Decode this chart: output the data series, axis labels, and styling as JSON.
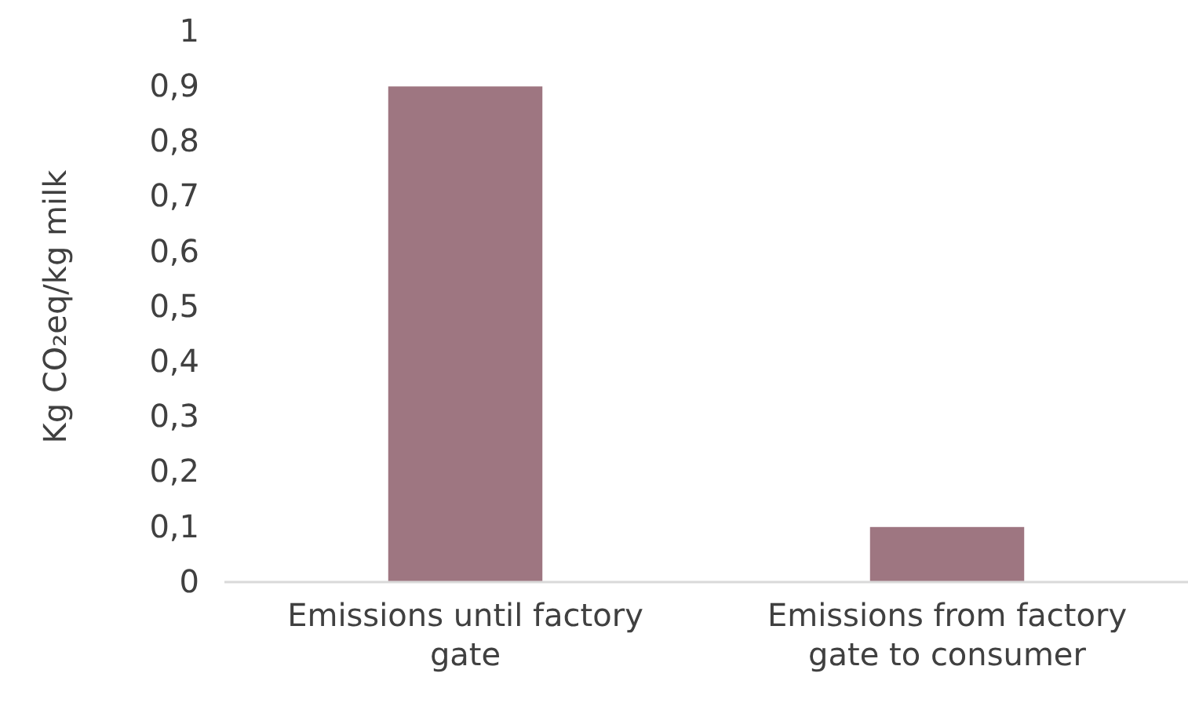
{
  "chart_data": {
    "type": "bar",
    "ylabel": "Kg CO₂eq/kg milk",
    "categories": [
      "Emissions until factory gate",
      "Emissions from factory gate to consumer"
    ],
    "values": [
      0.9,
      0.1
    ],
    "color": "#9e7681",
    "ylim": [
      0,
      1
    ],
    "yticks": [
      0,
      {
        "value": 0.1,
        "label": "0,1"
      },
      {
        "value": 0.2,
        "label": "0,2"
      },
      {
        "value": 0.3,
        "label": "0,3"
      },
      {
        "value": 0.4,
        "label": "0,4"
      },
      {
        "value": 0.5,
        "label": "0,5"
      },
      {
        "value": 0.6,
        "label": "0,6"
      },
      {
        "value": 0.7,
        "label": "0,7"
      },
      {
        "value": 0.8,
        "label": "0,8"
      },
      {
        "value": 0.9,
        "label": "0,9"
      },
      1
    ],
    "grid": false
  }
}
